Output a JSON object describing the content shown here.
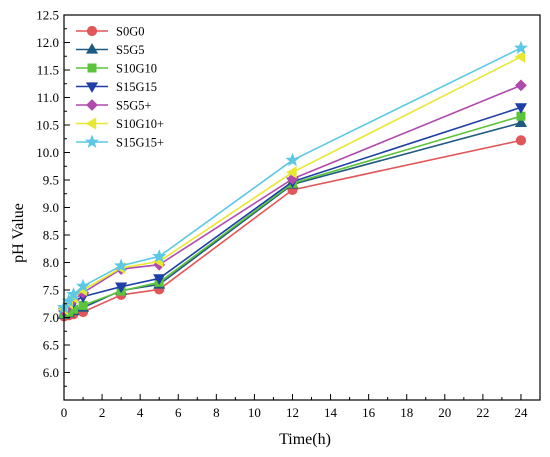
{
  "chart_data": {
    "type": "line",
    "xlabel": "Time(h)",
    "ylabel": "pH Value",
    "xlim": [
      0,
      25
    ],
    "ylim": [
      5.5,
      12.5
    ],
    "x_ticks": [
      0,
      2,
      4,
      6,
      8,
      10,
      12,
      14,
      16,
      18,
      20,
      22,
      24
    ],
    "y_ticks": [
      6.0,
      6.5,
      7.0,
      7.5,
      8.0,
      8.5,
      9.0,
      9.5,
      10.0,
      10.5,
      11.0,
      11.5,
      12.0,
      12.5
    ],
    "x_tick_labels": [
      "0",
      "2",
      "4",
      "6",
      "8",
      "10",
      "12",
      "14",
      "16",
      "18",
      "20",
      "22",
      "24"
    ],
    "y_tick_labels": [
      "6.0",
      "6.5",
      "7.0",
      "7.5",
      "8.0",
      "8.5",
      "9.0",
      "9.5",
      "10.0",
      "10.5",
      "11.0",
      "11.5",
      "12.0",
      "12.5"
    ],
    "grid": false,
    "legend_position": "top-left",
    "x": [
      0,
      0.25,
      0.5,
      1,
      3,
      5,
      12,
      24
    ],
    "series": [
      {
        "name": "S0G0",
        "color": "#e15759",
        "marker": "circle",
        "values": [
          7.02,
          7.04,
          7.06,
          7.1,
          7.41,
          7.51,
          9.32,
          10.22
        ]
      },
      {
        "name": "S5G5",
        "color": "#1f5a80",
        "marker": "triangle-up",
        "values": [
          7.05,
          7.08,
          7.12,
          7.18,
          7.49,
          7.6,
          9.42,
          10.54
        ]
      },
      {
        "name": "S10G10",
        "color": "#5bc43b",
        "marker": "square",
        "values": [
          7.07,
          7.1,
          7.15,
          7.22,
          7.48,
          7.64,
          9.44,
          10.66
        ]
      },
      {
        "name": "S15G15",
        "color": "#1f3fa8",
        "marker": "triangle-down",
        "values": [
          7.1,
          7.2,
          7.28,
          7.38,
          7.56,
          7.71,
          9.47,
          10.82
        ]
      },
      {
        "name": "S5G5+",
        "color": "#b04aae",
        "marker": "diamond",
        "values": [
          7.12,
          7.22,
          7.32,
          7.45,
          7.88,
          7.96,
          9.52,
          11.22
        ]
      },
      {
        "name": "S10G10+",
        "color": "#e8e832",
        "marker": "triangle-left",
        "values": [
          7.15,
          7.26,
          7.36,
          7.5,
          7.9,
          8.02,
          9.64,
          11.74
        ]
      },
      {
        "name": "S15G15+",
        "color": "#5cc8e4",
        "marker": "star",
        "values": [
          7.18,
          7.3,
          7.42,
          7.57,
          7.94,
          8.11,
          9.86,
          11.9
        ]
      }
    ]
  }
}
